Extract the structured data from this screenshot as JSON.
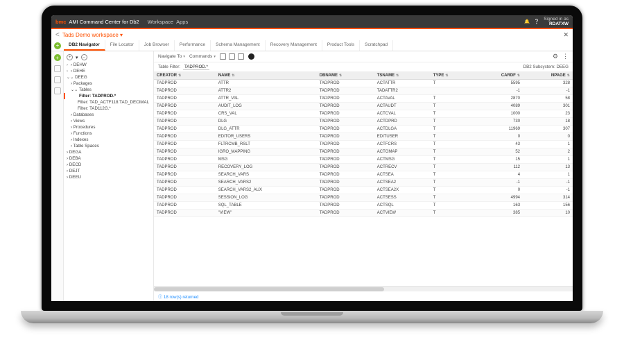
{
  "colors": {
    "accent": "#fe5000",
    "green": "#7bbd2f"
  },
  "titlebar": {
    "logo": "bmc",
    "product": "AMI Command Center for Db2",
    "menu1": "Workspace",
    "menu2": "Apps",
    "signed_label": "Signed in as",
    "user": "RDATXW"
  },
  "workspace": {
    "title": "Tads Demo workspace",
    "back": "<",
    "dropdown": "▾"
  },
  "tabs": [
    "DB2 Navigator",
    "File Locator",
    "Job Browser",
    "Performance",
    "Schema Management",
    "Recovery Management",
    "Product Tools",
    "Scratchpad"
  ],
  "active_tab": 0,
  "tree_toolbar": {
    "plus": "+",
    "minus": "–"
  },
  "tree": {
    "top": [
      "DEHW",
      "DEHE"
    ],
    "deeg": "DEEG",
    "deeg_children": [
      "Packages"
    ],
    "tables": "Tables",
    "tables_children": [
      {
        "label": "Filter: TADPROD.*",
        "sel": true
      },
      {
        "label": "Filter: TAD_ACTF118:TAD_DECIMAL"
      },
      {
        "label": "Filter: TAD112G.*"
      }
    ],
    "deeg_rest": [
      "Databases",
      "Views",
      "Procedures",
      "Functions",
      "Indexes",
      "Table Spaces"
    ],
    "bottom": [
      "DEGA",
      "DEBA",
      "DECD",
      "DEJT",
      "DEEU"
    ]
  },
  "toolbar": {
    "nav": "Navigate To",
    "cmd": "Commands",
    "subsystem_label": "DB2 Subsystem:",
    "subsystem": "DEEG"
  },
  "filter": {
    "label": "Table Filter:",
    "value": "TADPROD.*"
  },
  "columns": [
    "CREATOR",
    "NAME",
    "DBNAME",
    "TSNAME",
    "TYPE",
    "CARDF",
    "NPAGE"
  ],
  "rows": [
    [
      "TADPROD",
      "ATTR",
      "TADPROD",
      "ACTATTR",
      "T",
      "5595",
      "328"
    ],
    [
      "TADPROD",
      "ATTR2",
      "TADPROD",
      "TADATTR2",
      "",
      "-1",
      "-1"
    ],
    [
      "TADPROD",
      "ATTR_VAL",
      "TADPROD",
      "ACTAVAL",
      "T",
      "2870",
      "58"
    ],
    [
      "TADPROD",
      "AUDIT_LOG",
      "TADPROD",
      "ACTAUDT",
      "T",
      "4089",
      "301"
    ],
    [
      "TADPROD",
      "CRS_VAL",
      "TADPROD",
      "ACTCVAL",
      "T",
      "1000",
      "23"
    ],
    [
      "TADPROD",
      "DLG",
      "TADPROD",
      "ACTDPRD",
      "T",
      "730",
      "18"
    ],
    [
      "TADPROD",
      "DLG_ATTR",
      "TADPROD",
      "ACTDLGA",
      "T",
      "11969",
      "307"
    ],
    [
      "TADPROD",
      "EDITOR_USERS",
      "TADPROD",
      "EDITUSER",
      "T",
      "0",
      "0"
    ],
    [
      "TADPROD",
      "FLTRCMB_RSLT",
      "TADPROD",
      "ACTFCRS",
      "T",
      "43",
      "1"
    ],
    [
      "TADPROD",
      "IGRO_MAPPING",
      "TADPROD",
      "ACTGMAP",
      "T",
      "52",
      "2"
    ],
    [
      "TADPROD",
      "MSG",
      "TADPROD",
      "ACTMSG",
      "T",
      "15",
      "1"
    ],
    [
      "TADPROD",
      "RECOVERY_LOG",
      "TADPROD",
      "ACTRECV",
      "T",
      "112",
      "13"
    ],
    [
      "TADPROD",
      "SEARCH_VARS",
      "TADPROD",
      "ACTSEA",
      "T",
      "4",
      "1"
    ],
    [
      "TADPROD",
      "SEARCH_VARS2",
      "TADPROD",
      "ACTSEA2",
      "T",
      "-1",
      "-1"
    ],
    [
      "TADPROD",
      "SEARCH_VARS2_AUX",
      "TADPROD",
      "ACTSEA2X",
      "T",
      "0",
      "-1"
    ],
    [
      "TADPROD",
      "SESSION_LOG",
      "TADPROD",
      "ACTSESS",
      "T",
      "4994",
      "314"
    ],
    [
      "TADPROD",
      "SQL_TABLE",
      "TADPROD",
      "ACTSQL",
      "T",
      "163",
      "156"
    ],
    [
      "TADPROD",
      "\"VIEW\"",
      "TADPROD",
      "ACTVIEW",
      "T",
      "385",
      "10"
    ]
  ],
  "status": "18 row(s) returned"
}
